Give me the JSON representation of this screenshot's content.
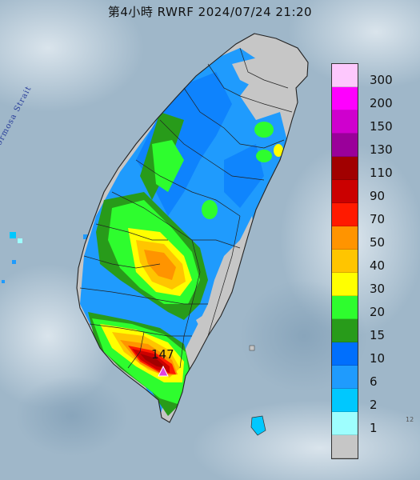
{
  "title": "第4小時  RWRF 2024/07/24 21:20",
  "strait_label": "Formosa Strait",
  "max_value_label": "147",
  "corner_label": "12",
  "legend": {
    "labels": [
      "300",
      "200",
      "150",
      "130",
      "110",
      "90",
      "70",
      "50",
      "40",
      "30",
      "20",
      "15",
      "10",
      "6",
      "2",
      "1"
    ],
    "colors": [
      "#fdc8fd",
      "#fe00fe",
      "#cf00ce",
      "#9a009a",
      "#a10000",
      "#cb0000",
      "#ff1a00",
      "#ff9400",
      "#ffc500",
      "#ffff00",
      "#2efd2e",
      "#289b1a",
      "#006ffd",
      "#1f9bfd",
      "#00c8fe",
      "#9efefe",
      "#c6c6c6"
    ]
  },
  "colors": {
    "sea": "#9fb7c9",
    "land": "#c7c7c7",
    "marker": "#e040e0"
  }
}
